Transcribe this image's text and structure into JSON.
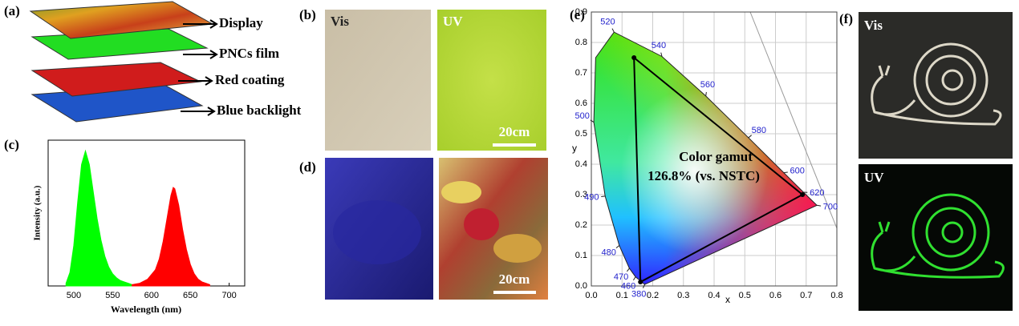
{
  "panel_labels": [
    "(a)",
    "(b)",
    "(c)",
    "(d)",
    "(e)",
    "(f)"
  ],
  "panel_a": {
    "layers": [
      "Display",
      "PNCs film",
      "Red coating",
      "Blue backlight"
    ]
  },
  "panel_b": {
    "labels": [
      "Vis",
      "UV"
    ],
    "scale_bar": "20cm"
  },
  "panel_c": {
    "type": "line",
    "xlabel": "Wavelength (nm)",
    "ylabel": "Intensity (a.u.)",
    "xlim": [
      467,
      720
    ],
    "ylim": [
      0,
      1.08
    ],
    "xticks": [
      500,
      550,
      600,
      650,
      700
    ],
    "series": [
      {
        "color": "#00ff00",
        "x": [
          490,
          495,
          500,
          505,
          510,
          515,
          520,
          525,
          530,
          535,
          540,
          545,
          550,
          555,
          560,
          565,
          570,
          575
        ],
        "values": [
          0.02,
          0.1,
          0.3,
          0.62,
          0.9,
          1.0,
          0.9,
          0.7,
          0.5,
          0.34,
          0.22,
          0.14,
          0.09,
          0.06,
          0.04,
          0.03,
          0.02,
          0.01
        ]
      },
      {
        "color": "#ff0000",
        "x": [
          575,
          585,
          595,
          605,
          610,
          615,
          620,
          625,
          628,
          630,
          635,
          640,
          645,
          650,
          655,
          660,
          665,
          670,
          675
        ],
        "values": [
          0.01,
          0.02,
          0.05,
          0.12,
          0.2,
          0.33,
          0.5,
          0.67,
          0.73,
          0.72,
          0.6,
          0.42,
          0.27,
          0.16,
          0.09,
          0.05,
          0.03,
          0.02,
          0.01
        ]
      }
    ]
  },
  "panel_d": {
    "scale_bar": "20cm"
  },
  "panel_e": {
    "xlabel": "x",
    "ylabel": "y",
    "xlim": [
      0,
      0.8
    ],
    "ylim": [
      0,
      0.9
    ],
    "xticks": [
      {
        "value": 0,
        "label": "0.0"
      },
      0.1,
      0.2,
      0.3,
      0.4,
      0.5,
      0.6,
      0.7,
      0.8
    ],
    "yticks": [
      {
        "value": 0,
        "label": "0.0"
      },
      0.1,
      0.2,
      0.3,
      0.4,
      0.5,
      0.6,
      0.7,
      0.8,
      0.9
    ],
    "annotation": [
      "Color gamut",
      "126.8% (vs. NSTC)"
    ],
    "locus": {
      "labels": [
        "380",
        "460",
        "470",
        "480",
        "490",
        "500",
        null,
        "520",
        "540",
        "560",
        "580",
        "600",
        "620",
        "700"
      ],
      "x": [
        0.1741,
        0.144,
        0.124,
        0.091,
        0.045,
        0.008,
        0.014,
        0.074,
        0.23,
        0.373,
        0.512,
        0.627,
        0.691,
        0.735
      ],
      "y": [
        0.005,
        0.03,
        0.058,
        0.133,
        0.295,
        0.538,
        0.75,
        0.834,
        0.754,
        0.624,
        0.487,
        0.372,
        0.308,
        0.265
      ]
    },
    "gamut": {
      "x": [
        0.139,
        0.688,
        0.16
      ],
      "y": [
        0.75,
        0.3,
        0.013
      ]
    }
  },
  "panel_f": {
    "labels": [
      "Vis",
      "UV"
    ]
  }
}
